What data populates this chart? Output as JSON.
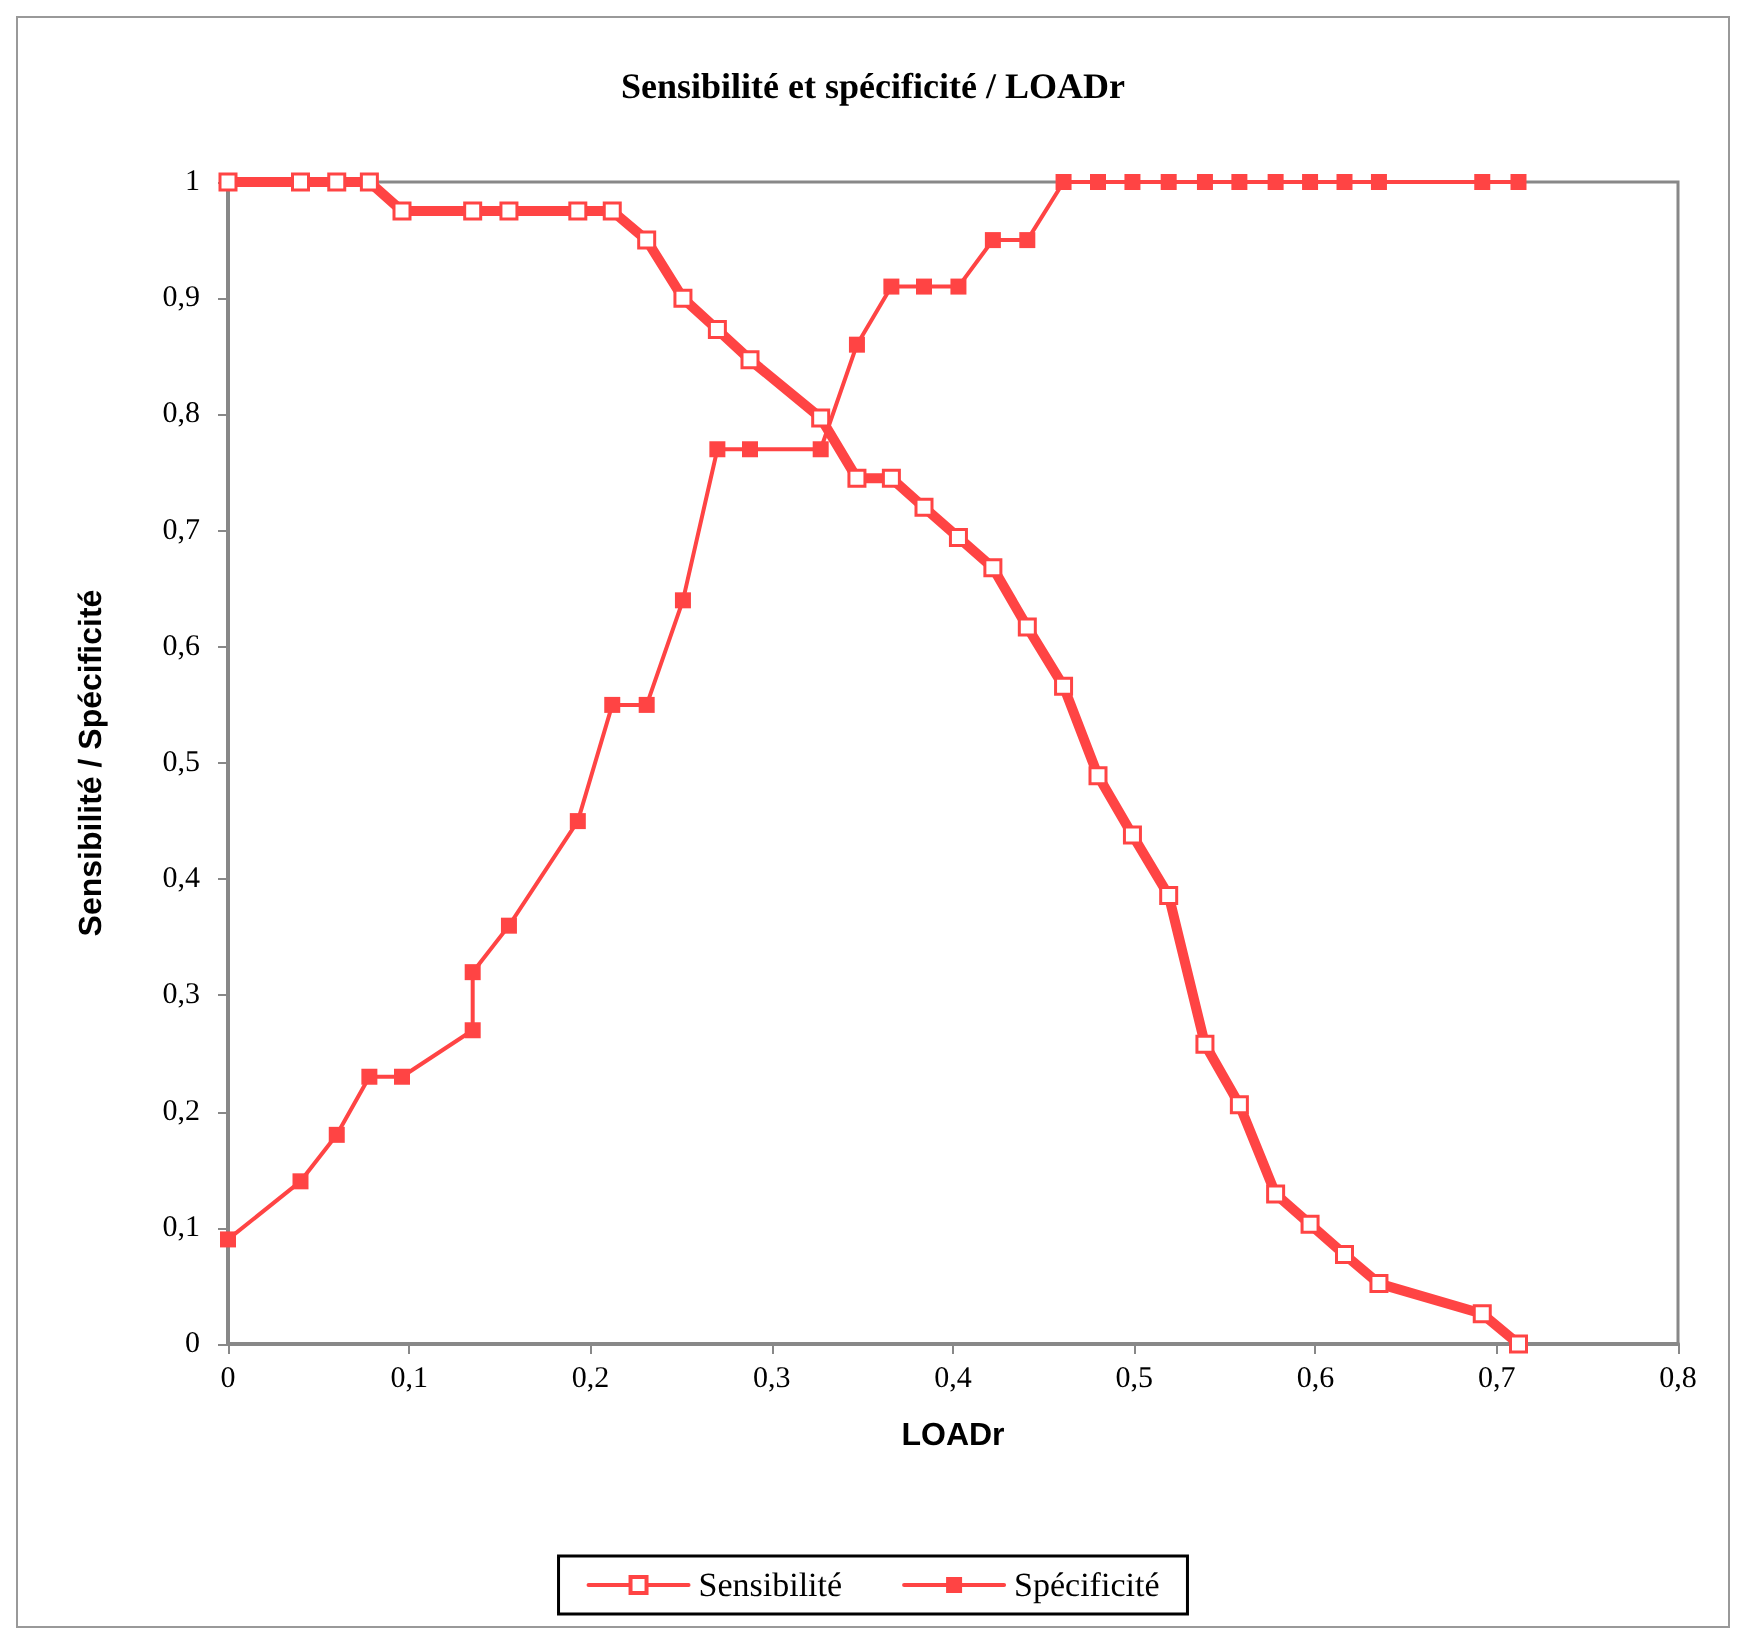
{
  "chart_data": {
    "type": "line",
    "title": "Sensibilité et spécificité / LOADr",
    "xlabel": "LOADr",
    "ylabel": "Sensibilité / Spécificité",
    "series": [
      {
        "name": "Sensibilité",
        "color": "#ff4444",
        "x": [
          0,
          0.04,
          0.06,
          0.078,
          0.096,
          0.135,
          0.155,
          0.193,
          0.212,
          0.231,
          0.251,
          0.27,
          0.288,
          0.327,
          0.347,
          0.366,
          0.384,
          0.403,
          0.422,
          0.441,
          0.461,
          0.48,
          0.499,
          0.519,
          0.539,
          0.558,
          0.578,
          0.597,
          0.616,
          0.635,
          0.692,
          0.712
        ],
        "values": [
          1,
          1,
          1,
          1,
          0.975,
          0.975,
          0.975,
          0.975,
          0.975,
          0.95,
          0.9,
          0.873,
          0.847,
          0.797,
          0.745,
          0.745,
          0.72,
          0.694,
          0.668,
          0.617,
          0.566,
          0.489,
          0.438,
          0.386,
          0.258,
          0.206,
          0.129,
          0.103,
          0.077,
          0.052,
          0.026,
          0
        ]
      },
      {
        "name": "Spécificité",
        "color": "#ff4444",
        "x": [
          0,
          0.04,
          0.06,
          0.078,
          0.096,
          0.135,
          0.135,
          0.155,
          0.193,
          0.212,
          0.231,
          0.251,
          0.27,
          0.288,
          0.327,
          0.347,
          0.366,
          0.384,
          0.403,
          0.422,
          0.441,
          0.461,
          0.48,
          0.499,
          0.519,
          0.539,
          0.558,
          0.578,
          0.597,
          0.616,
          0.635,
          0.692,
          0.712
        ],
        "values": [
          0.09,
          0.14,
          0.18,
          0.23,
          0.23,
          0.27,
          0.32,
          0.36,
          0.45,
          0.55,
          0.55,
          0.64,
          0.77,
          0.77,
          0.77,
          0.86,
          0.91,
          0.91,
          0.91,
          0.95,
          0.95,
          1,
          1,
          1,
          1,
          1,
          1,
          1,
          1,
          1,
          1,
          1,
          1
        ]
      }
    ],
    "xlim": [
      0,
      0.8
    ],
    "xticks": [
      0,
      {
        "value": 0.1,
        "label": "0,1"
      },
      {
        "value": 0.2,
        "label": "0,2"
      },
      {
        "value": 0.3,
        "label": "0,3"
      },
      {
        "value": 0.4,
        "label": "0,4"
      },
      {
        "value": 0.5,
        "label": "0,5"
      },
      {
        "value": 0.6,
        "label": "0,6"
      },
      {
        "value": 0.7,
        "label": "0,7"
      },
      {
        "value": 0.8,
        "label": "0,8"
      }
    ],
    "ylim": [
      0,
      1
    ],
    "yticks": [
      0,
      {
        "value": 0.1,
        "label": "0,1"
      },
      {
        "value": 0.2,
        "label": "0,2"
      },
      {
        "value": 0.3,
        "label": "0,3"
      },
      {
        "value": 0.4,
        "label": "0,4"
      },
      {
        "value": 0.5,
        "label": "0,5"
      },
      {
        "value": 0.6,
        "label": "0,6"
      },
      {
        "value": 0.7,
        "label": "0,7"
      },
      {
        "value": 0.8,
        "label": "0,8"
      },
      {
        "value": 0.9,
        "label": "0,9"
      },
      1
    ],
    "grid": false,
    "legend": "bottom",
    "marker": "square",
    "line_style": "solid"
  }
}
